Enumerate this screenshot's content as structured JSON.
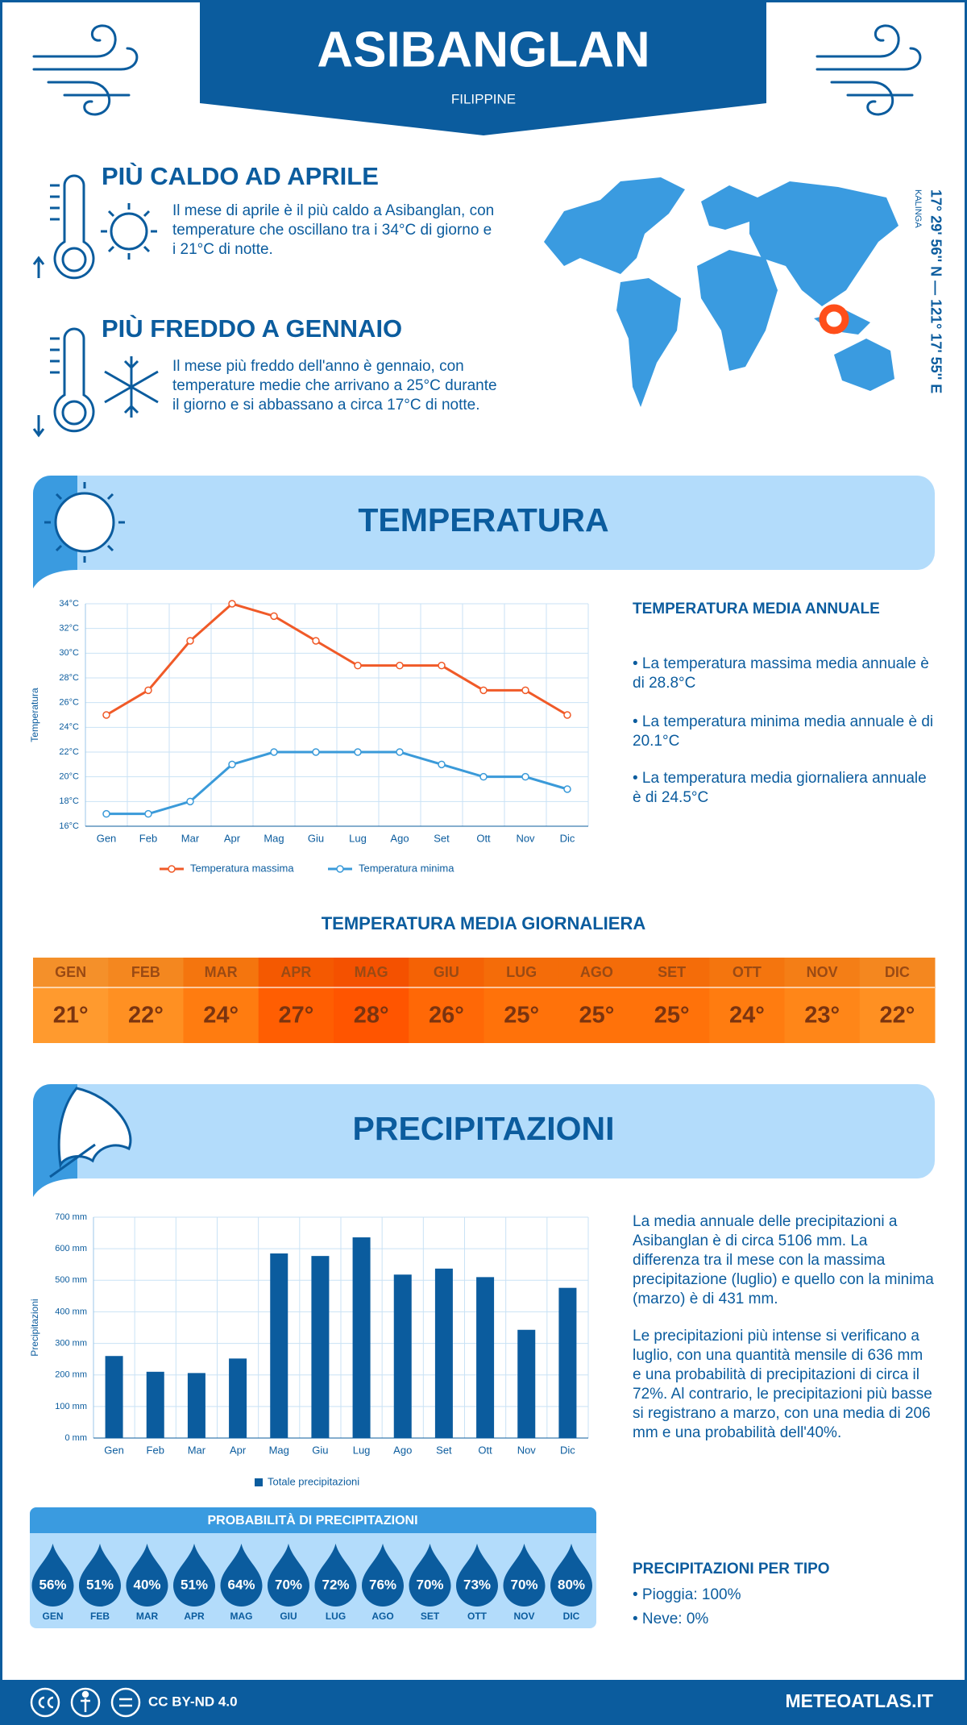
{
  "header": {
    "title": "ASIBANGLAN",
    "subtitle": "FILIPPINE"
  },
  "hot": {
    "title": "PIÙ CALDO AD APRILE",
    "text": "Il mese di aprile è il più caldo a Asibanglan, con temperature che oscillano tra i 34°C di giorno e i 21°C di notte."
  },
  "cold": {
    "title": "PIÙ FREDDO A GENNAIO",
    "text": "Il mese più freddo dell'anno è gennaio, con temperature medie che arrivano a 25°C durante il giorno e si abbassano a circa 17°C di notte."
  },
  "location": {
    "coordinates": "17° 29' 56'' N — 121° 17' 55'' E",
    "region": "KALINGA"
  },
  "temperature_section": {
    "title": "TEMPERATURA"
  },
  "chart_data": [
    {
      "type": "line",
      "y_label": "Temperatura",
      "categories": [
        "Gen",
        "Feb",
        "Mar",
        "Apr",
        "Mag",
        "Giu",
        "Lug",
        "Ago",
        "Set",
        "Ott",
        "Nov",
        "Dic"
      ],
      "series": [
        {
          "name": "Temperatura massima",
          "color": "#f05a28",
          "values": [
            25,
            27,
            31,
            34,
            33,
            31,
            29,
            29,
            29,
            27,
            27,
            25
          ]
        },
        {
          "name": "Temperatura minima",
          "color": "#3a9ad9",
          "values": [
            17,
            17,
            18,
            21,
            22,
            22,
            22,
            22,
            21,
            20,
            20,
            19
          ]
        }
      ],
      "ylim": [
        16,
        34
      ],
      "yticks": [
        {
          "value": 16,
          "label": "16°C"
        },
        {
          "value": 18,
          "label": "18°C"
        },
        {
          "value": 20,
          "label": "20°C"
        },
        {
          "value": 22,
          "label": "22°C"
        },
        {
          "value": 24,
          "label": "24°C"
        },
        {
          "value": 26,
          "label": "26°C"
        },
        {
          "value": 28,
          "label": "28°C"
        },
        {
          "value": 30,
          "label": "30°C"
        },
        {
          "value": 32,
          "label": "32°C"
        },
        {
          "value": 34,
          "label": "34°C"
        }
      ],
      "grid": true
    },
    {
      "type": "bar",
      "y_label": "Precipitazioni",
      "categories": [
        "Gen",
        "Feb",
        "Mar",
        "Apr",
        "Mag",
        "Giu",
        "Lug",
        "Ago",
        "Set",
        "Ott",
        "Nov",
        "Dic"
      ],
      "series": [
        {
          "name": "Totale precipitazioni",
          "color": "#0b5c9e",
          "values": [
            260,
            210,
            206,
            252,
            585,
            577,
            636,
            518,
            537,
            510,
            343,
            476
          ]
        }
      ],
      "ylim": [
        0,
        700
      ],
      "yticks": [
        {
          "value": 0,
          "label": "0 mm"
        },
        {
          "value": 100,
          "label": "100 mm"
        },
        {
          "value": 200,
          "label": "200 mm"
        },
        {
          "value": 300,
          "label": "300 mm"
        },
        {
          "value": 400,
          "label": "400 mm"
        },
        {
          "value": 500,
          "label": "500 mm"
        },
        {
          "value": 600,
          "label": "600 mm"
        },
        {
          "value": 700,
          "label": "700 mm"
        }
      ],
      "grid": true
    }
  ],
  "annual": {
    "title": "TEMPERATURA MEDIA ANNUALE",
    "items": [
      "• La temperatura massima media annuale è di 28.8°C",
      "• La temperatura minima media annuale è di 20.1°C",
      "• La temperatura media giornaliera annuale è di 24.5°C"
    ]
  },
  "daily": {
    "title": "TEMPERATURA MEDIA GIORNALIERA",
    "months": [
      "GEN",
      "FEB",
      "MAR",
      "APR",
      "MAG",
      "GIU",
      "LUG",
      "AGO",
      "SET",
      "OTT",
      "NOV",
      "DIC"
    ],
    "values": [
      "21°",
      "22°",
      "24°",
      "27°",
      "28°",
      "26°",
      "25°",
      "25°",
      "25°",
      "24°",
      "23°",
      "22°"
    ],
    "colors": [
      "#ff9a2e",
      "#ff9022",
      "#ff7c10",
      "#ff5e02",
      "#ff5500",
      "#ff6806",
      "#ff720a",
      "#ff720a",
      "#ff720a",
      "#ff7c10",
      "#ff8618",
      "#ff9022"
    ]
  },
  "precipitation_section": {
    "title": "PRECIPITAZIONI"
  },
  "precipitation_text": [
    "La media annuale delle precipitazioni a Asibanglan è di circa 5106 mm. La differenza tra il mese con la massima precipitazione (luglio) e quello con la minima (marzo) è di 431 mm.",
    "Le precipitazioni più intense si verificano a luglio, con una quantità mensile di 636 mm e una probabilità di precipitazioni di circa il 72%. Al contrario, le precipitazioni più basse si registrano a marzo, con una media di 206 mm e una probabilità dell'40%."
  ],
  "probability": {
    "title": "PROBABILITÀ DI PRECIPITAZIONI",
    "months": [
      "GEN",
      "FEB",
      "MAR",
      "APR",
      "MAG",
      "GIU",
      "LUG",
      "AGO",
      "SET",
      "OTT",
      "NOV",
      "DIC"
    ],
    "values": [
      "56%",
      "51%",
      "40%",
      "51%",
      "64%",
      "70%",
      "72%",
      "76%",
      "70%",
      "73%",
      "70%",
      "80%"
    ]
  },
  "types": {
    "title": "PRECIPITAZIONI PER TIPO",
    "items": [
      "• Pioggia: 100%",
      "• Neve: 0%"
    ]
  },
  "footer": {
    "license": "CC BY-ND 4.0",
    "site": "METEOATLAS.IT"
  }
}
